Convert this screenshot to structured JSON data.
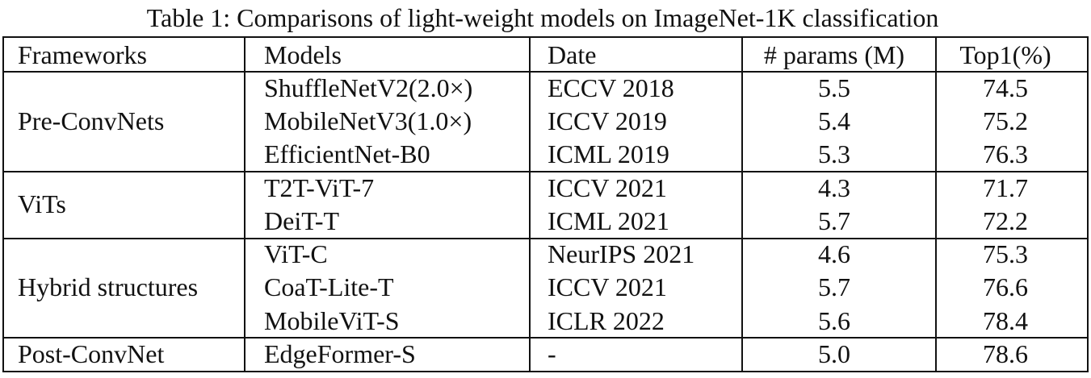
{
  "title": "Table 1: Comparisons of light-weight models on ImageNet-1K classification",
  "table": {
    "header": [
      "Frameworks",
      "Models",
      "Date",
      "# params (M)",
      "Top1(%)"
    ],
    "groups": [
      {
        "framework": "Pre-ConvNets",
        "rows": [
          [
            "ShuffleNetV2(2.0×)",
            "ECCV 2018",
            "5.5",
            "74.5"
          ],
          [
            "MobileNetV3(1.0×)",
            "ICCV 2019",
            "5.4",
            "75.2"
          ],
          [
            "EfficientNet-B0",
            "ICML 2019",
            "5.3",
            "76.3"
          ]
        ]
      },
      {
        "framework": "ViTs",
        "rows": [
          [
            "T2T-ViT-7",
            "ICCV 2021",
            "4.3",
            "71.7"
          ],
          [
            "DeiT-T",
            "ICML 2021",
            "5.7",
            "72.2"
          ]
        ]
      },
      {
        "framework": "Hybrid structures",
        "rows": [
          [
            "ViT-C",
            "NeurIPS 2021",
            "4.6",
            "75.3"
          ],
          [
            "CoaT-Lite-T",
            "ICCV 2021",
            "5.7",
            "76.6"
          ],
          [
            "MobileViT-S",
            "ICLR 2022",
            "5.6",
            "78.4"
          ]
        ]
      },
      {
        "framework": "Post-ConvNet",
        "rows": [
          [
            "EdgeFormer-S",
            "-",
            "5.0",
            "78.6"
          ]
        ]
      }
    ]
  }
}
